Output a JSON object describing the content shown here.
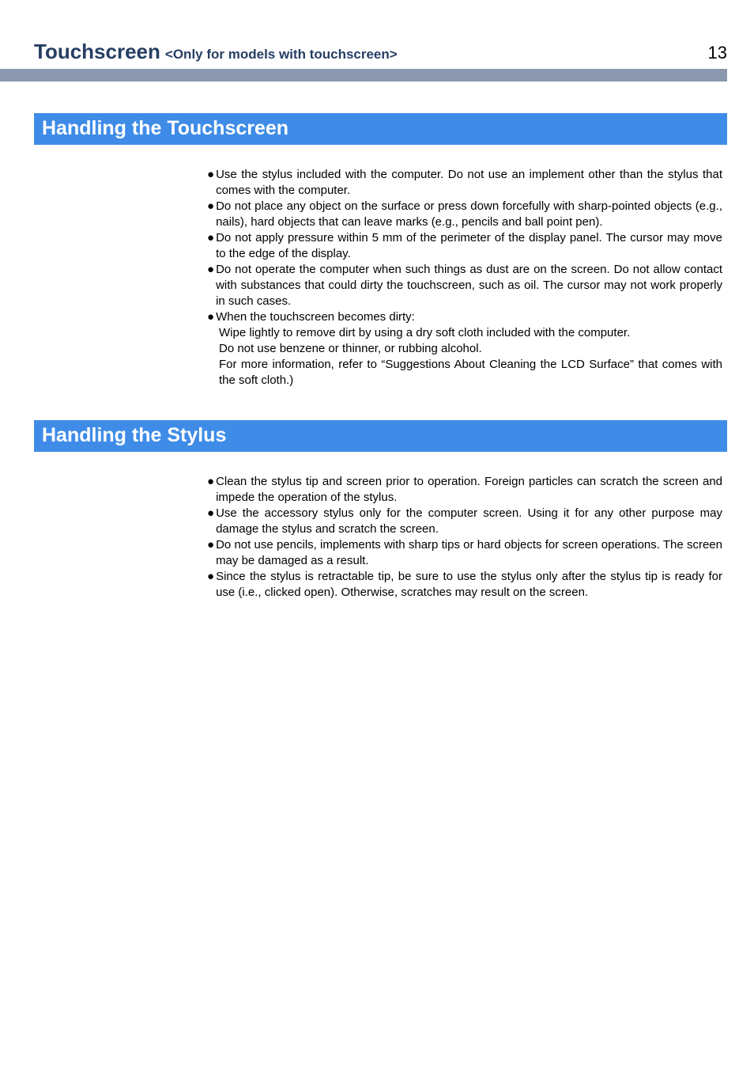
{
  "header": {
    "title": "Touchscreen",
    "subtitle": "<Only for models with touchscreen>",
    "page_number": "13",
    "title_color": "#263e63",
    "rule_color": "#8b98ae"
  },
  "sections": [
    {
      "heading": "Handling the Touchscreen",
      "heading_bg": "#3f8ce8",
      "heading_color": "#ffffff",
      "bullets": [
        {
          "text": "Use the stylus included with the computer. Do not use an implement other than the stylus that comes with the computer."
        },
        {
          "text": "Do not place any object on the surface or press down forcefully with sharp-pointed objects (e.g., nails), hard objects that can leave marks (e.g., pencils and ball point pen)."
        },
        {
          "text": "Do not apply pressure within 5 mm of the perimeter of the display panel. The cursor may move to the edge of the display."
        },
        {
          "text": "Do not operate the computer when such things as dust are on the screen. Do not allow contact with substances that could dirty the touchscreen, such as oil. The cursor may not work properly in such cases."
        },
        {
          "text": "When the touchscreen becomes dirty:",
          "sub": [
            "Wipe lightly to remove dirt by using a dry soft cloth included with the computer.",
            "Do not use benzene or thinner, or rubbing alcohol.",
            "For more information, refer to “Suggestions About Cleaning the LCD Surface” that comes with the soft cloth.)"
          ]
        }
      ]
    },
    {
      "heading": "Handling the Stylus",
      "heading_bg": "#3f8ce8",
      "heading_color": "#ffffff",
      "bullets": [
        {
          "text": "Clean the stylus tip and screen prior to operation. Foreign particles can scratch the screen and impede the operation of the stylus."
        },
        {
          "text": "Use the accessory stylus only for the computer screen. Using it for any other purpose may damage the stylus and scratch the screen."
        },
        {
          "text": "Do not use pencils, implements with sharp tips or hard objects for screen operations. The screen may be damaged as a result."
        },
        {
          "text": "Since the stylus is retractable tip, be sure to use the stylus only after the stylus tip is ready for use (i.e., clicked open). Otherwise, scratches may result on the screen."
        }
      ]
    }
  ],
  "style": {
    "body_font_size": "15px",
    "body_line_height": "20px",
    "heading_font_size": "25px",
    "title_font_size": "26px",
    "subtitle_font_size": "17px",
    "page_number_font_size": "22px",
    "background_color": "#ffffff",
    "text_color": "#000000"
  }
}
